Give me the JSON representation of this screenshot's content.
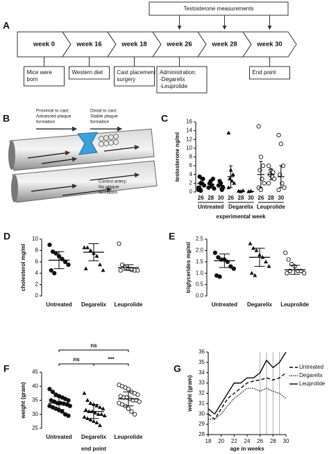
{
  "panels": {
    "a": "A",
    "b": "B"
  },
  "timeline": {
    "measurement": "Testosterone measurements",
    "weeks": [
      "week 0",
      "week 16",
      "week 18",
      "week 26",
      "week 28",
      "week 30"
    ],
    "notes": [
      {
        "lines": [
          "Mice were",
          "born"
        ]
      },
      {
        "lines": [
          "Western diet"
        ]
      },
      {
        "lines": [
          "Cast placement",
          "surgery"
        ]
      },
      {
        "lines": [
          "Administration:",
          "-Degarelix",
          "-Leuprolide"
        ]
      },
      {
        "lines": [
          "End point"
        ]
      }
    ]
  },
  "illustration": {
    "labels": [
      {
        "lines": [
          "Proximal to cast:",
          "Advanced plaque",
          "formation"
        ]
      },
      {
        "lines": [
          "Distal to cast:",
          "Stable plaque",
          "formation"
        ]
      },
      {
        "lines": [
          "Control artery:",
          "No plaque",
          "formation"
        ]
      }
    ]
  },
  "chart_data": [
    {
      "type": "strip",
      "label": "C",
      "y_label": "testosterone ng/ml",
      "x_label": "experimental week",
      "categories": [
        "26",
        "28",
        "30",
        "26",
        "28",
        "30",
        "26",
        "28",
        "30"
      ],
      "group_labels": [
        "Untreated",
        "Degarelix",
        "Leuprolide"
      ],
      "markers": [
        "circle",
        "circle",
        "circle",
        "triangle",
        "triangle",
        "triangle",
        "open-circle",
        "open-circle",
        "open-circle"
      ],
      "points": [
        [
          1,
          2,
          3,
          3.5,
          2,
          1.5,
          0.5,
          0.3
        ],
        [
          1,
          2.5,
          3,
          2,
          1.5,
          0.8
        ],
        [
          1.5,
          2,
          1,
          2.5,
          0.5
        ],
        [
          13.5,
          5,
          4,
          3,
          2.5,
          2,
          1
        ],
        [
          0.2,
          0.1,
          0.3
        ],
        [
          0.1,
          0.2
        ],
        [
          15,
          8,
          6,
          5,
          3,
          2,
          1,
          0.5
        ],
        [
          6,
          5,
          4.5,
          4,
          3.5,
          3,
          2
        ],
        [
          13,
          11,
          6,
          4,
          2,
          1,
          0.5
        ]
      ],
      "means": [
        2,
        1.8,
        1.5,
        3.5,
        0.2,
        0.1,
        4,
        4,
        3.5
      ],
      "sds": [
        1.2,
        0.9,
        0.7,
        2.5,
        0.1,
        0.1,
        3,
        1.2,
        2.5
      ],
      "ylim": [
        0,
        16
      ],
      "yticks": [
        0,
        2,
        4,
        6,
        8,
        10,
        12,
        14,
        16
      ]
    },
    {
      "type": "strip",
      "label": "D",
      "y_label": "cholesterol mg/ml",
      "categories": [
        "Untreated",
        "Degarelix",
        "Leuprolide"
      ],
      "markers": [
        "circle",
        "triangle",
        "open-circle"
      ],
      "points": [
        [
          9,
          7.8,
          7.5,
          7,
          6.5,
          6,
          5.5,
          4.5,
          4
        ],
        [
          8.5,
          8.5,
          8,
          7.5,
          7,
          5.5,
          4.5,
          4.8
        ],
        [
          9.2,
          5.5,
          5,
          4.8,
          4.6,
          4.5,
          4.5,
          4.5
        ]
      ],
      "means": [
        6.3,
        7.7,
        5
      ],
      "sds": [
        1.5,
        1.5,
        0.5
      ],
      "ylim": [
        0,
        10
      ],
      "yticks": [
        0,
        2,
        4,
        6,
        8,
        10
      ]
    },
    {
      "type": "strip",
      "label": "E",
      "y_label": "triglycerides mg/ml",
      "categories": [
        "Untreated",
        "Degarelix",
        "Leuprolide"
      ],
      "markers": [
        "circle",
        "triangle",
        "open-circle"
      ],
      "points": [
        [
          1.9,
          1.7,
          1.6,
          1.6,
          1.5,
          1.3,
          1.2,
          0.9,
          0.85
        ],
        [
          2.3,
          2.1,
          2,
          1.8,
          1.7,
          1.5,
          1.3,
          1,
          0.9
        ],
        [
          1.9,
          1.6,
          1.4,
          1.3,
          1.1,
          1.1,
          1,
          1,
          1.1
        ]
      ],
      "means": [
        1.55,
        1.7,
        1.15
      ],
      "sds": [
        0.3,
        0.4,
        0.2
      ],
      "ylim": [
        0,
        2.5
      ],
      "yticks": [
        {
          "value": 0,
          "label": "0.0"
        },
        0.5,
        {
          "value": 1,
          "label": "1.0"
        },
        1.5,
        {
          "value": 2,
          "label": "2.0"
        },
        2.5
      ]
    },
    {
      "type": "strip",
      "label": "F",
      "y_label": "weight (gram)",
      "x_label": "end point",
      "categories": [
        "Untreated",
        "Degarelix",
        "Leuprolide"
      ],
      "markers": [
        "circle",
        "triangle",
        "open-circle"
      ],
      "points": [
        [
          39,
          38,
          37,
          36.5,
          36,
          35.5,
          35,
          35,
          34.5,
          34,
          34,
          33.8,
          33.5,
          33,
          33,
          32.5,
          32,
          31.5,
          31,
          30,
          29.5
        ],
        [
          37.5,
          35,
          34,
          33.5,
          33,
          32.5,
          32,
          31.5,
          31,
          31,
          30.5,
          30,
          30,
          29.5,
          29,
          28.5,
          28,
          27.5,
          27,
          26
        ],
        [
          40.5,
          40,
          39.5,
          39,
          38,
          37.5,
          37,
          36.5,
          36,
          36,
          35.5,
          35,
          35,
          34.5,
          34,
          33.5,
          33,
          32,
          31,
          30
        ]
      ],
      "means": [
        34,
        31,
        35.5
      ],
      "sds": [
        2.3,
        2.5,
        2.5
      ],
      "annotations": [
        {
          "text": "ns",
          "from": 0,
          "to": 2
        },
        {
          "text": "ns",
          "from": 0,
          "to": 1
        },
        {
          "text": "***",
          "from": 1,
          "to": 2
        }
      ],
      "ylim": [
        25,
        45
      ],
      "yticks": [
        25,
        30,
        35,
        40,
        45
      ]
    },
    {
      "type": "line",
      "label": "G",
      "y_label": "weight (gram)",
      "x_label": "age in weeks",
      "x": [
        18,
        19,
        20,
        21,
        22,
        23,
        24,
        25,
        26,
        27,
        28,
        29,
        30
      ],
      "series": [
        {
          "name": "Untreated",
          "color": "#000",
          "dash": "dashed",
          "values": [
            30,
            29.5,
            30.5,
            31.5,
            32,
            32.5,
            33,
            33.2,
            33.3,
            33.5,
            33.3,
            33.5,
            34
          ]
        },
        {
          "name": "Degarelix",
          "color": "#000",
          "dash": "dotted",
          "values": [
            29.5,
            29.5,
            30,
            30.8,
            31.5,
            32,
            32.5,
            32.5,
            32.2,
            32.5,
            32.2,
            32,
            31.5
          ]
        },
        {
          "name": "Leuprolide",
          "color": "#000",
          "dash": "solid",
          "values": [
            30.5,
            30,
            31,
            32,
            33,
            33,
            33.5,
            33.5,
            34,
            35.2,
            34.5,
            35,
            36
          ]
        }
      ],
      "reference_lines": [
        26,
        27,
        28,
        29
      ],
      "xlim": [
        18,
        30
      ],
      "xticks": [
        18,
        20,
        22,
        24,
        26,
        28,
        30
      ],
      "ylim": [
        28,
        36
      ],
      "yticks": [
        28,
        29,
        30,
        31,
        32,
        33,
        34,
        35,
        36
      ]
    }
  ]
}
